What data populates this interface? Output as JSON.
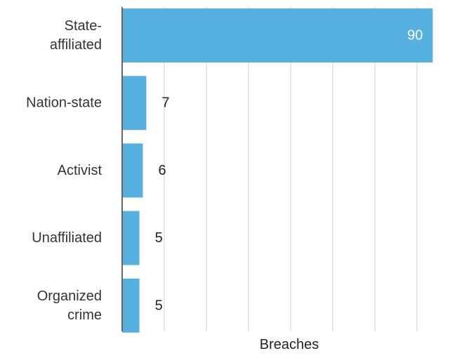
{
  "chart_data": {
    "type": "bar",
    "orientation": "horizontal",
    "categories": [
      [
        "State-",
        "affiliated"
      ],
      [
        "Nation-state"
      ],
      [
        "Activist"
      ],
      [
        "Unaffiliated"
      ],
      [
        "Organized",
        "crime"
      ]
    ],
    "values": [
      90,
      7,
      6,
      5,
      5
    ],
    "xlabel": "Breaches",
    "xlim": [
      0,
      95
    ],
    "grid": true,
    "value_labels": true
  },
  "colors": {
    "bar": "#56b0e0",
    "grid": "#e6e6e6",
    "axis": "#666666",
    "value_inside": "#ffffff"
  }
}
